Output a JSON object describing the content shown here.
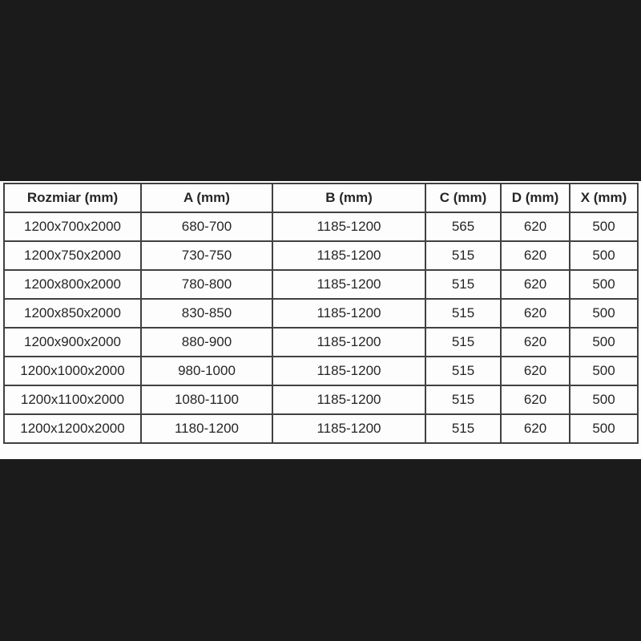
{
  "style": {
    "background": "#1b1b1c",
    "panel_background": "#fdfdfd",
    "border_color": "#414141",
    "text_color": "#262626"
  },
  "chart_data": {
    "type": "table",
    "title": "",
    "columns": [
      "Rozmiar (mm)",
      "A (mm)",
      "B (mm)",
      "C (mm)",
      "D (mm)",
      "X (mm)"
    ],
    "rows": [
      [
        "1200x700x2000",
        "680-700",
        "1185-1200",
        "565",
        "620",
        "500"
      ],
      [
        "1200x750x2000",
        "730-750",
        "1185-1200",
        "515",
        "620",
        "500"
      ],
      [
        "1200x800x2000",
        "780-800",
        "1185-1200",
        "515",
        "620",
        "500"
      ],
      [
        "1200x850x2000",
        "830-850",
        "1185-1200",
        "515",
        "620",
        "500"
      ],
      [
        "1200x900x2000",
        "880-900",
        "1185-1200",
        "515",
        "620",
        "500"
      ],
      [
        "1200x1000x2000",
        "980-1000",
        "1185-1200",
        "515",
        "620",
        "500"
      ],
      [
        "1200x1100x2000",
        "1080-1100",
        "1185-1200",
        "515",
        "620",
        "500"
      ],
      [
        "1200x1200x2000",
        "1180-1200",
        "1185-1200",
        "515",
        "620",
        "500"
      ]
    ]
  }
}
